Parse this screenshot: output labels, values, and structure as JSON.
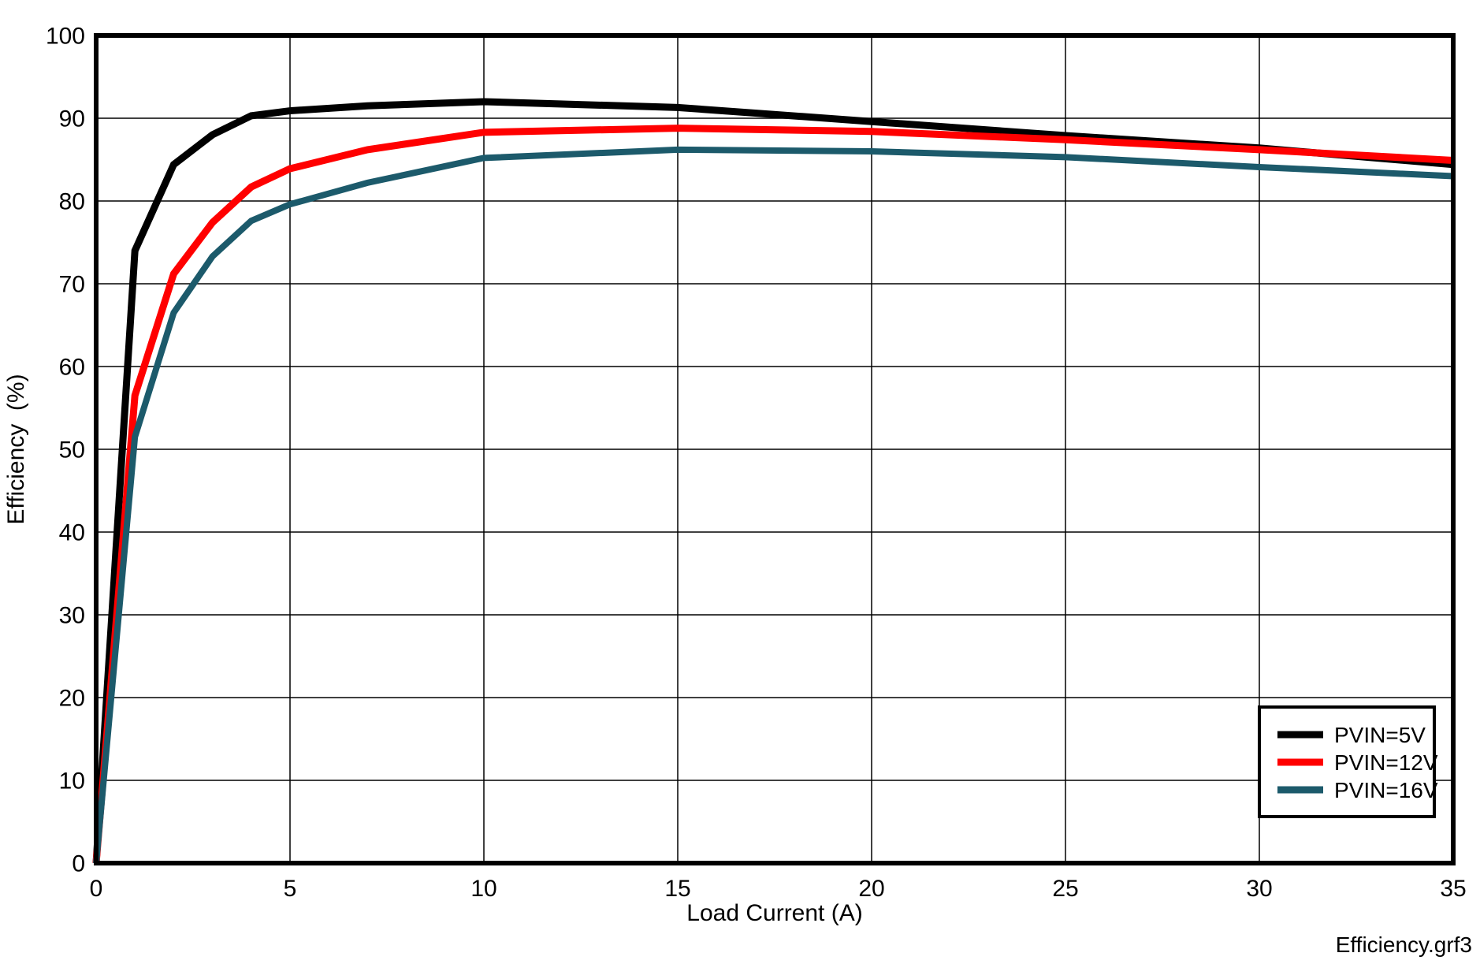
{
  "chart_data": {
    "type": "line",
    "title": "",
    "xlabel": "Load Current (A)",
    "ylabel": "Efficiency  (%)",
    "xlim": [
      0,
      35
    ],
    "ylim": [
      0,
      100
    ],
    "xticks": [
      0,
      5,
      10,
      15,
      20,
      25,
      30,
      35
    ],
    "yticks": [
      0,
      10,
      20,
      30,
      40,
      50,
      60,
      70,
      80,
      90,
      100
    ],
    "grid": true,
    "grid_color": "#000000",
    "frame_color": "#000000",
    "legend_position": "bottom-right",
    "x": [
      0,
      1,
      2,
      3,
      4,
      5,
      7,
      10,
      15,
      20,
      25,
      30,
      35
    ],
    "series": [
      {
        "name": "PVIN=5V",
        "color": "#000000",
        "line_width": 9,
        "values": [
          0,
          74.0,
          84.4,
          88.0,
          90.3,
          90.9,
          91.5,
          92.0,
          91.3,
          89.6,
          87.9,
          86.4,
          84.4
        ]
      },
      {
        "name": "PVIN=12V",
        "color": "#ff0000",
        "line_width": 9,
        "values": [
          0,
          56.5,
          71.2,
          77.4,
          81.7,
          83.9,
          86.2,
          88.3,
          88.8,
          88.4,
          87.4,
          86.2,
          84.9
        ]
      },
      {
        "name": "PVIN=16V",
        "color": "#1c5a6b",
        "line_width": 8,
        "values": [
          0,
          51.5,
          66.5,
          73.3,
          77.6,
          79.6,
          82.2,
          85.2,
          86.2,
          86.0,
          85.3,
          84.1,
          83.0
        ]
      }
    ]
  },
  "footer": {
    "filename": "Efficiency.grf3"
  }
}
